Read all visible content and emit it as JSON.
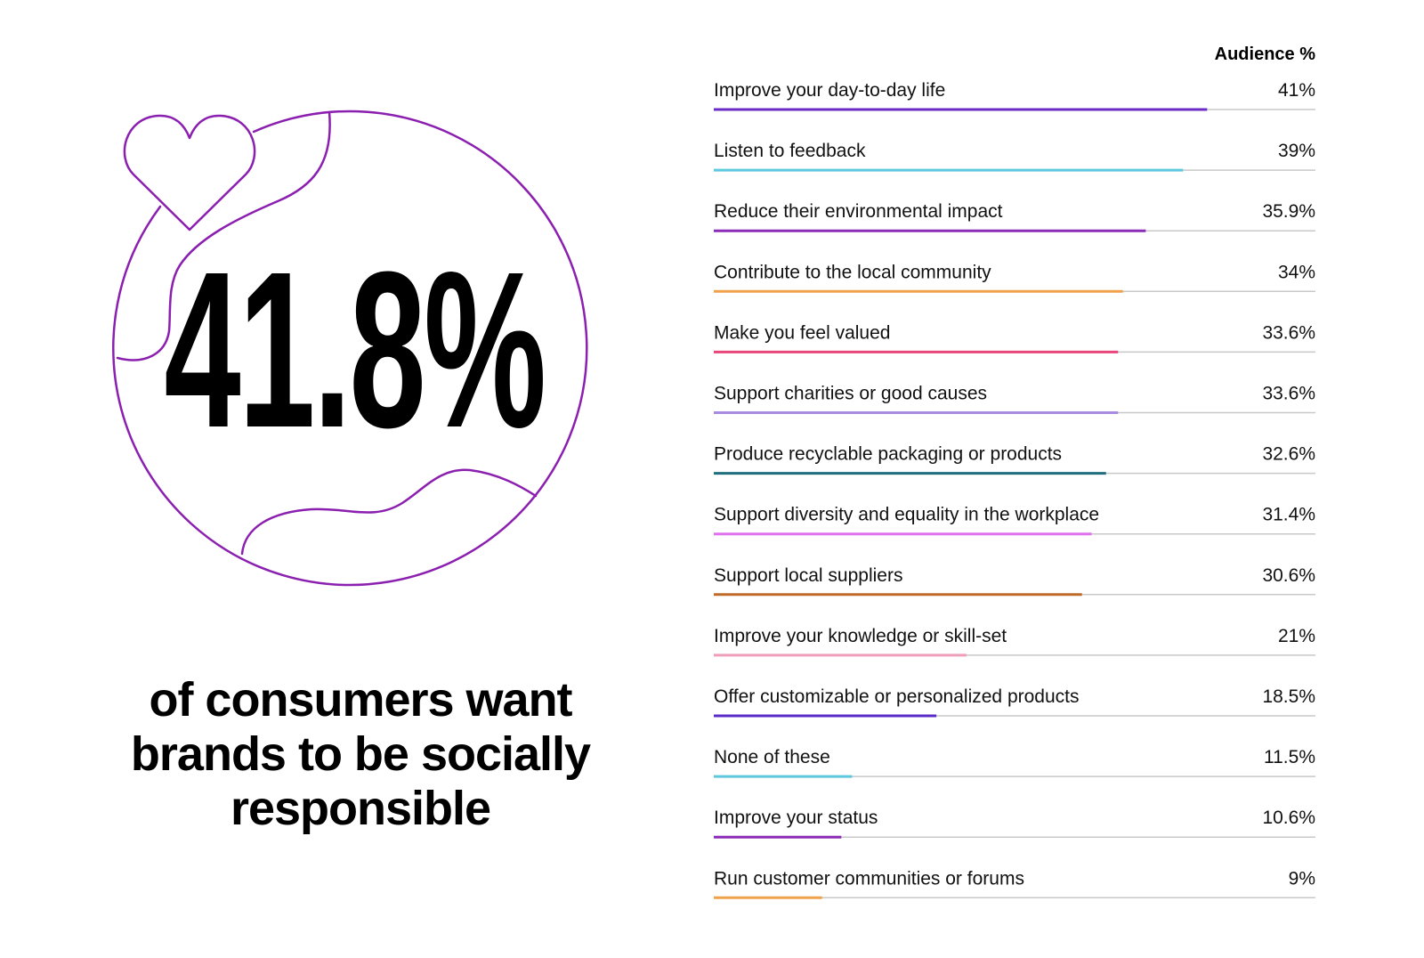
{
  "stat": {
    "value": "41.8%",
    "caption": "of consumers want brands to be socially responsible"
  },
  "colors": {
    "globe_stroke": "#8b1fb0",
    "baseline": "#c8c8c8"
  },
  "chart_data": {
    "type": "bar",
    "orientation": "horizontal",
    "value_header": "Audience %",
    "xlim": [
      0,
      50
    ],
    "categories": [
      "Improve your day-to-day life",
      "Listen to feedback",
      "Reduce their environmental impact",
      "Contribute to the local community",
      "Make you feel valued",
      "Support charities or good causes",
      "Produce recyclable packaging or products",
      "Support diversity and equality in the workplace",
      "Support local suppliers",
      "Improve your knowledge or skill-set",
      "Offer customizable or personalized products",
      "None of these",
      "Improve your status",
      "Run customer communities or forums"
    ],
    "values": [
      41,
      39,
      35.9,
      34,
      33.6,
      33.6,
      32.6,
      31.4,
      30.6,
      21,
      18.5,
      11.5,
      10.6,
      9
    ],
    "value_labels": [
      "41%",
      "39%",
      "35.9%",
      "34%",
      "33.6%",
      "33.6%",
      "32.6%",
      "31.4%",
      "30.6%",
      "21%",
      "18.5%",
      "11.5%",
      "10.6%",
      "9%"
    ],
    "bar_colors": [
      "#6a2bc6",
      "#5ec8de",
      "#8c2bb8",
      "#f0a24a",
      "#e8457a",
      "#a88be0",
      "#1f6e7e",
      "#e070ee",
      "#c06a2a",
      "#ef9dbb",
      "#5a2bc8",
      "#5ec8de",
      "#8c2bb8",
      "#f0a24a"
    ]
  }
}
